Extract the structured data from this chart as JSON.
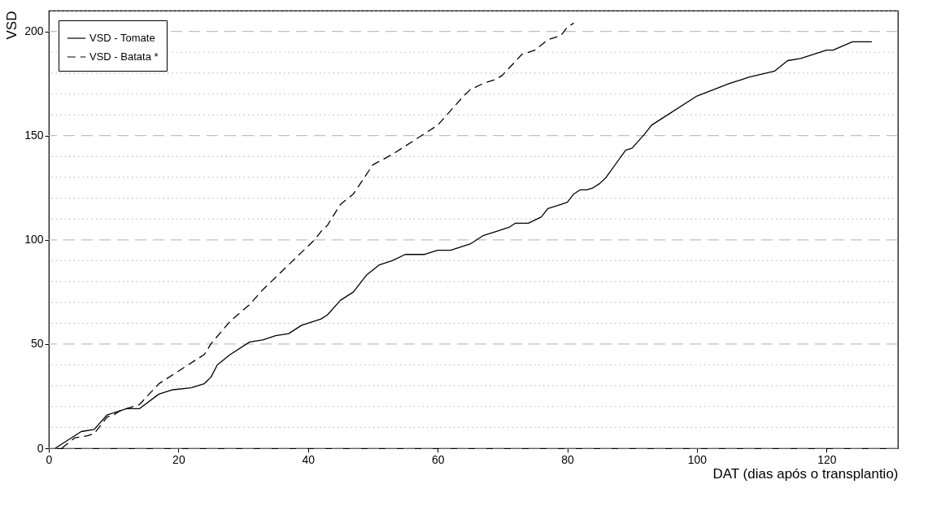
{
  "chart_data": {
    "type": "line",
    "xlabel": "DAT (dias após o transplantio)",
    "ylabel": "VSD",
    "xlim": [
      0,
      131
    ],
    "xticks": [
      0,
      20,
      40,
      60,
      80,
      100,
      120
    ],
    "ylim": [
      0,
      210
    ],
    "yticks": [
      0,
      {
        "value": 10,
        "label": null
      },
      {
        "value": 20,
        "label": null
      },
      {
        "value": 30,
        "label": null
      },
      {
        "value": 40,
        "label": null
      },
      50,
      {
        "value": 60,
        "label": null
      },
      {
        "value": 70,
        "label": null
      },
      {
        "value": 80,
        "label": null
      },
      {
        "value": 90,
        "label": null
      },
      100,
      {
        "value": 110,
        "label": null
      },
      {
        "value": 120,
        "label": null
      },
      {
        "value": 130,
        "label": null
      },
      {
        "value": 140,
        "label": null
      },
      150,
      {
        "value": 160,
        "label": null
      },
      {
        "value": 170,
        "label": null
      },
      {
        "value": 180,
        "label": null
      },
      {
        "value": 190,
        "label": null
      },
      200,
      {
        "value": 210,
        "label": null
      }
    ],
    "grid": "y",
    "legend": "top left",
    "marker": "none",
    "series": [
      {
        "name": "VSD - Tomate",
        "color": "#000000",
        "line_style": "solid",
        "x": [
          1,
          5,
          7,
          9,
          12,
          14,
          17,
          19,
          22,
          24,
          25,
          26,
          28,
          31,
          33,
          35,
          37,
          39,
          42,
          43,
          45,
          47,
          49,
          51,
          53,
          55,
          58,
          60,
          62,
          65,
          67,
          69,
          71,
          72,
          74,
          76,
          77,
          79,
          80,
          81,
          82,
          83,
          84,
          85,
          86,
          89,
          90,
          92,
          93,
          95,
          100,
          105,
          107,
          108,
          112,
          114,
          116,
          120,
          121,
          124,
          127
        ],
        "values": [
          0,
          8,
          9,
          16,
          19,
          19,
          26,
          28,
          29,
          31,
          34,
          40,
          45,
          51,
          52,
          54,
          55,
          59,
          62,
          64,
          71,
          75,
          83,
          88,
          90,
          93,
          93,
          95,
          95,
          98,
          102,
          104,
          106,
          108,
          108,
          111,
          115,
          117,
          118,
          122,
          124,
          124,
          125,
          127,
          130,
          143,
          144,
          151,
          155,
          159,
          169,
          175,
          177,
          178,
          181,
          186,
          187,
          191,
          191,
          195,
          195
        ]
      },
      {
        "name": "VSD - Batata *",
        "color": "#000000",
        "line_style": "dashed",
        "x": [
          2,
          4,
          6,
          7,
          9,
          10,
          11,
          14,
          17,
          24,
          25,
          28,
          31,
          33,
          37,
          41,
          42,
          43,
          45,
          47,
          50,
          53,
          58,
          60,
          64,
          65,
          67,
          69,
          70,
          73,
          75,
          77,
          79,
          80,
          81
        ],
        "values": [
          0,
          5,
          6,
          7,
          15,
          16,
          18,
          21,
          31,
          45,
          50,
          61,
          69,
          76,
          88,
          100,
          104,
          107,
          117,
          122,
          136,
          141,
          151,
          155,
          169,
          172,
          175,
          177,
          179,
          189,
          191,
          196,
          198,
          202,
          204
        ]
      }
    ]
  }
}
